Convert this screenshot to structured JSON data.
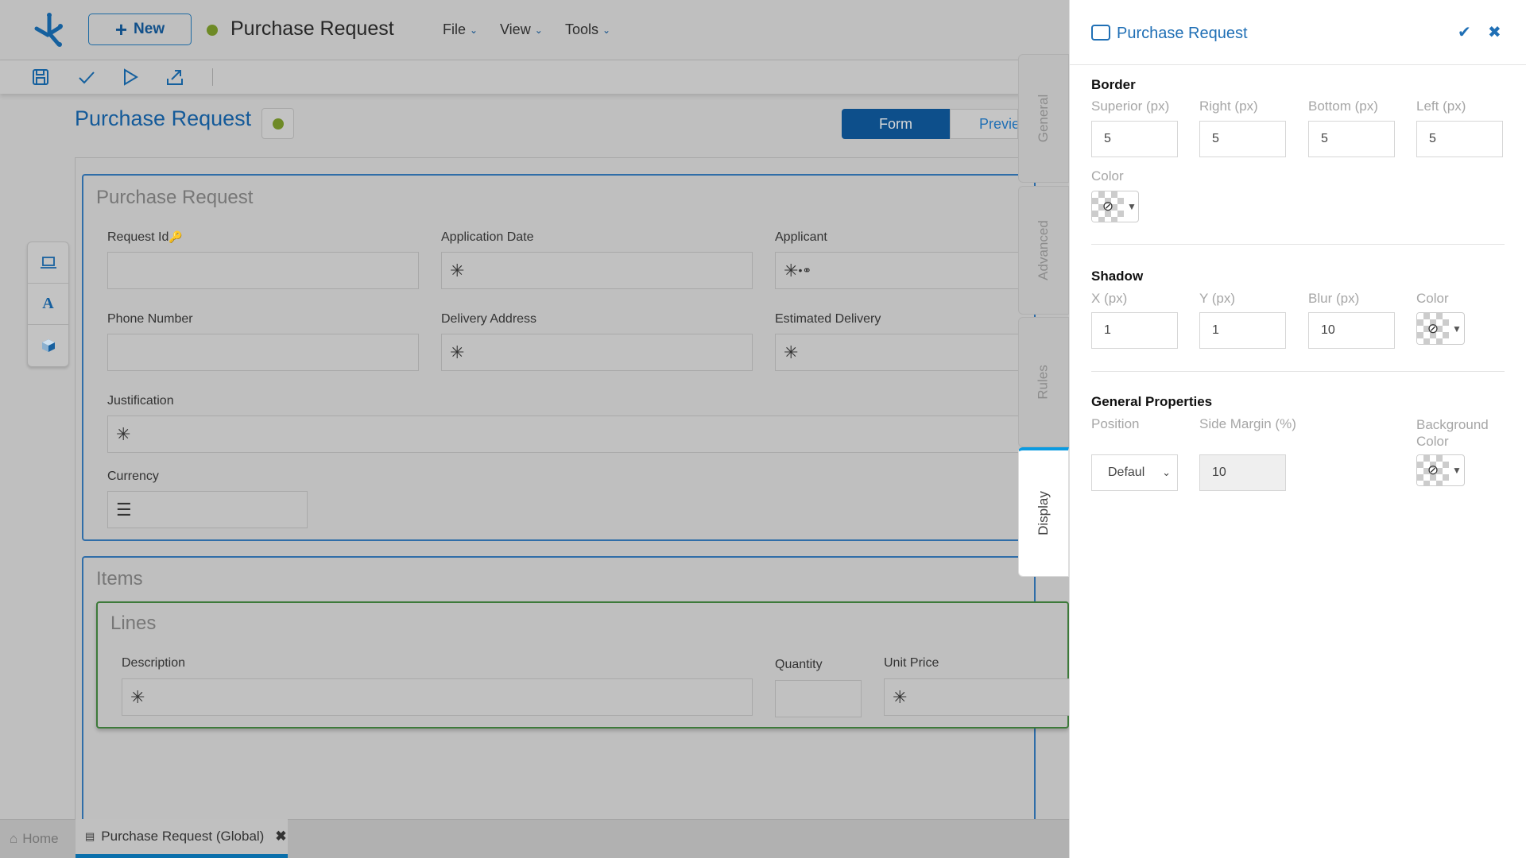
{
  "app": {
    "new_label": "New",
    "title": "Purchase Request",
    "status_color": "#6e8a26",
    "menus": [
      "File",
      "View",
      "Tools"
    ],
    "toolbar_icons": [
      "save-icon",
      "check-icon",
      "play-icon",
      "export-icon"
    ]
  },
  "page": {
    "title": "Purchase Request",
    "view_toggle": {
      "form": "Form",
      "preview": "Previe",
      "active": "Form"
    }
  },
  "toolbox": [
    "laptop-icon",
    "text-icon",
    "cube-icon"
  ],
  "form": {
    "section1": {
      "title": "Purchase Request",
      "fields": {
        "request_id": "Request Id",
        "application_date": "Application Date",
        "applicant": "Applicant",
        "phone_number": "Phone Number",
        "delivery_address": "Delivery Address",
        "estimated_delivery": "Estimated Delivery",
        "justification": "Justification",
        "currency": "Currency"
      }
    },
    "section2": {
      "title": "Items",
      "lines": {
        "title": "Lines",
        "description": "Description",
        "quantity": "Quantity",
        "unit_price": "Unit Price"
      }
    }
  },
  "bottom_tabs": {
    "home": "Home",
    "active_tab": "Purchase Request (Global)"
  },
  "side_tabs": [
    "General",
    "Advanced",
    "Rules",
    "Display"
  ],
  "side_tabs_active": "Display",
  "panel": {
    "title": "Purchase Request",
    "border": {
      "heading": "Border",
      "labels": [
        "Superior (px)",
        "Right (px)",
        "Bottom (px)",
        "Left (px)"
      ],
      "values": [
        "5",
        "5",
        "5",
        "5"
      ],
      "color_label": "Color"
    },
    "shadow": {
      "heading": "Shadow",
      "labels": [
        "X (px)",
        "Y (px)",
        "Blur (px)"
      ],
      "values": [
        "1",
        "1",
        "10"
      ],
      "color_label": "Color"
    },
    "general": {
      "heading": "General Properties",
      "position_label": "Position",
      "position_value": "Defaul",
      "side_margin_label": "Side Margin (%)",
      "side_margin_value": "10",
      "background_label": "Background Color"
    },
    "accent": "#1f6fb5"
  }
}
